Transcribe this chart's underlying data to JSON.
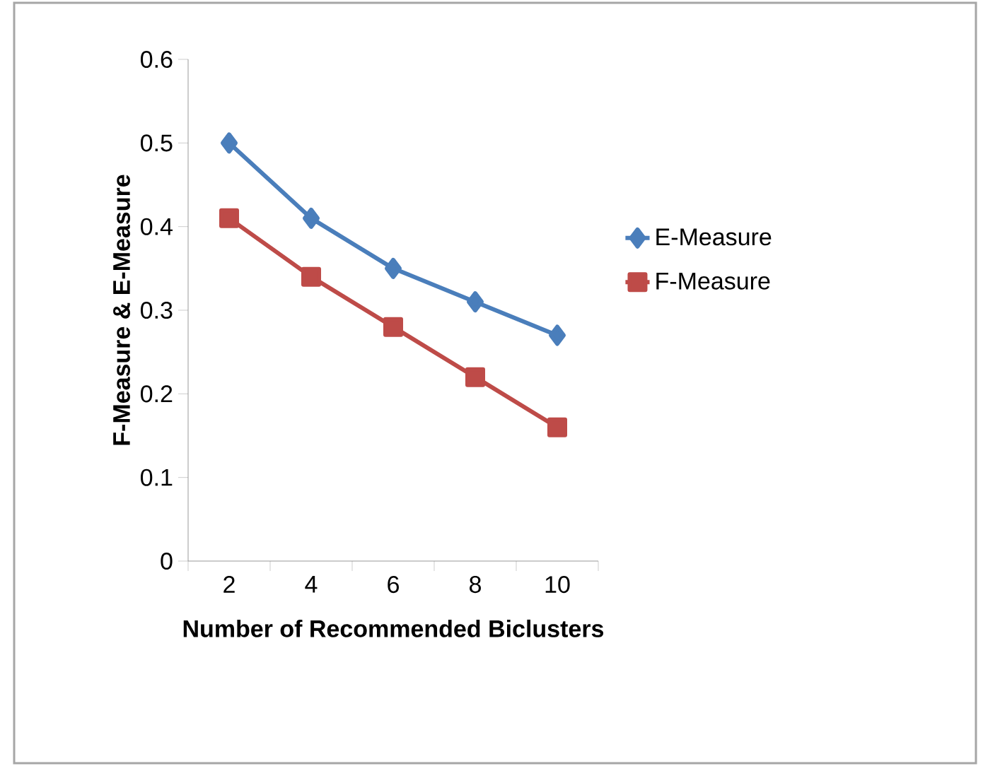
{
  "chart_data": {
    "type": "line",
    "xlabel": "Number of Recommended Biclusters",
    "ylabel": "F-Measure & E-Measure",
    "categories": [
      "2",
      "4",
      "6",
      "8",
      "10"
    ],
    "series": [
      {
        "name": "E-Measure",
        "color": "#4a7ebb",
        "marker": "diamond",
        "values": [
          0.5,
          0.41,
          0.35,
          0.31,
          0.27
        ]
      },
      {
        "name": "F-Measure",
        "color": "#be4b48",
        "marker": "square",
        "values": [
          0.41,
          0.34,
          0.28,
          0.22,
          0.16
        ]
      }
    ],
    "ylim": [
      0,
      0.6
    ],
    "yticks": [
      0,
      0.1,
      0.2,
      0.3,
      0.4,
      0.5,
      0.6
    ],
    "grid": false,
    "legend": "right",
    "line_style": "solid"
  }
}
